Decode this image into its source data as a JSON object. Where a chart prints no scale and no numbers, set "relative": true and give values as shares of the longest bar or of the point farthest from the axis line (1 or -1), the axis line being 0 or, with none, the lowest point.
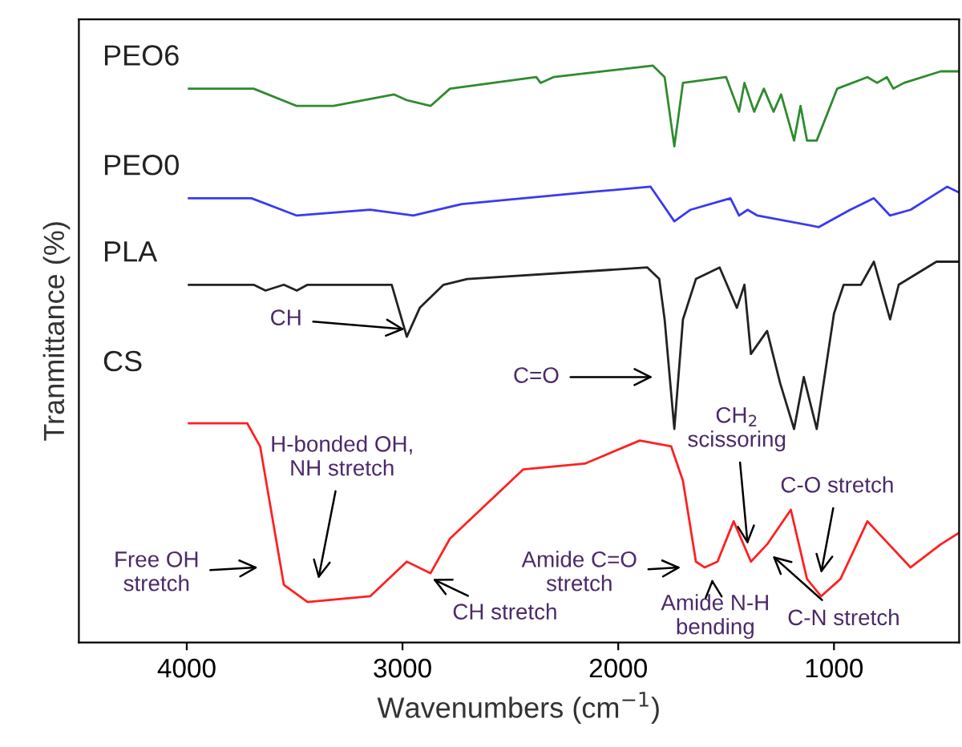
{
  "chart_data": {
    "type": "line",
    "relative": true,
    "xlabel": "Wavenumbers (cm$^{−1}$)",
    "ylabel": "Tranmittance (%)",
    "xlim": [
      4500,
      420
    ],
    "xticks": [
      4000,
      3000,
      2000,
      1000
    ],
    "grid": false,
    "legend": false,
    "marker": "none",
    "line_style": "solid",
    "series": [
      {
        "name": "PEO6",
        "color": "#2e8b2e",
        "x": [
          3990,
          3690,
          3490,
          3320,
          3040,
          2980,
          2870,
          2780,
          2380,
          2360,
          2300,
          1840,
          1785,
          1740,
          1700,
          1500,
          1440,
          1415,
          1370,
          1325,
          1280,
          1245,
          1185,
          1155,
          1125,
          1080,
          985,
          845,
          800,
          755,
          725,
          675,
          505,
          420
        ],
        "values": [
          0.96,
          0.96,
          0.93,
          0.93,
          0.95,
          0.94,
          0.93,
          0.96,
          0.98,
          0.97,
          0.98,
          1,
          0.98,
          0.86,
          0.97,
          0.98,
          0.92,
          0.97,
          0.92,
          0.96,
          0.92,
          0.95,
          0.87,
          0.93,
          0.87,
          0.87,
          0.96,
          0.98,
          0.97,
          0.98,
          0.96,
          0.97,
          0.99,
          0.99
        ]
      },
      {
        "name": "PEO0",
        "color": "#3a3af0",
        "x": [
          3990,
          3700,
          3490,
          3150,
          2950,
          2725,
          2155,
          1850,
          1740,
          1665,
          1480,
          1440,
          1400,
          1355,
          1070,
          925,
          815,
          740,
          645,
          475,
          420
        ],
        "values": [
          0.77,
          0.77,
          0.74,
          0.75,
          0.74,
          0.76,
          0.78,
          0.79,
          0.73,
          0.75,
          0.77,
          0.74,
          0.75,
          0.74,
          0.72,
          0.75,
          0.77,
          0.74,
          0.75,
          0.79,
          0.78
        ]
      },
      {
        "name": "PLA",
        "color": "#222222",
        "x": [
          3990,
          3690,
          3635,
          3550,
          3490,
          3440,
          3050,
          2980,
          2920,
          2810,
          2700,
          1865,
          1810,
          1785,
          1740,
          1700,
          1640,
          1530,
          1450,
          1415,
          1385,
          1310,
          1250,
          1185,
          1140,
          1080,
          1000,
          955,
          875,
          815,
          740,
          700,
          525,
          420
        ],
        "values": [
          0.62,
          0.62,
          0.61,
          0.62,
          0.61,
          0.62,
          0.62,
          0.53,
          0.58,
          0.62,
          0.63,
          0.65,
          0.63,
          0.56,
          0.37,
          0.56,
          0.63,
          0.65,
          0.58,
          0.62,
          0.5,
          0.54,
          0.45,
          0.37,
          0.46,
          0.37,
          0.57,
          0.62,
          0.62,
          0.66,
          0.56,
          0.62,
          0.66,
          0.66
        ]
      },
      {
        "name": "CS",
        "color": "#ff2020",
        "x": [
          3990,
          3720,
          3660,
          3550,
          3440,
          3150,
          2980,
          2870,
          2780,
          2440,
          2155,
          1900,
          1755,
          1700,
          1640,
          1600,
          1540,
          1465,
          1385,
          1310,
          1200,
          1125,
          1060,
          970,
          845,
          645,
          505,
          420
        ],
        "values": [
          0.38,
          0.38,
          0.34,
          0.1,
          0.07,
          0.08,
          0.14,
          0.12,
          0.18,
          0.3,
          0.31,
          0.35,
          0.34,
          0.28,
          0.14,
          0.13,
          0.14,
          0.21,
          0.14,
          0.17,
          0.23,
          0.11,
          0.08,
          0.11,
          0.21,
          0.13,
          0.17,
          0.19
        ]
      }
    ],
    "annotations": [
      "CH",
      "C=O",
      "CH$_{2}$\nscissoring",
      "C-O stretch",
      "Free OH\nstretch",
      "H-bonded OH,\nNH stretch",
      "CH stretch",
      "Amide C=O\nstretch",
      "Amide N-H\nbending",
      "C-N stretch"
    ]
  }
}
